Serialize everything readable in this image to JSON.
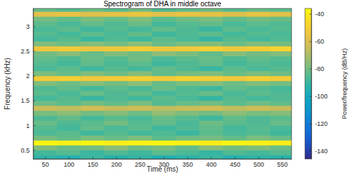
{
  "chart_data": {
    "type": "heatmap",
    "title": "Spectrogram of DHA in middle octave",
    "xlabel": "Time (ms)",
    "ylabel": "Frequency (kHz)",
    "x": [
      50,
      100,
      150,
      200,
      250,
      300,
      350,
      400,
      450,
      500,
      550
    ],
    "y": [
      0.35,
      0.45,
      0.55,
      0.65,
      0.75,
      0.85,
      0.95,
      1.05,
      1.15,
      1.25,
      1.35,
      1.45,
      1.55,
      1.65,
      1.75,
      1.85,
      1.95,
      2.05,
      2.15,
      2.25,
      2.35,
      2.45,
      2.55,
      2.65,
      2.75,
      2.85,
      2.95,
      3.05,
      3.15,
      3.25,
      3.35
    ],
    "z": [
      [
        -92,
        -95,
        -90,
        -94,
        -91,
        -96,
        -93,
        -90,
        -95,
        -92,
        -94
      ],
      [
        -88,
        -85,
        -90,
        -86,
        -89,
        -84,
        -87,
        -91,
        -86,
        -88,
        -85
      ],
      [
        -78,
        -82,
        -80,
        -76,
        -81,
        -79,
        -83,
        -77,
        -80,
        -78,
        -82
      ],
      [
        -38,
        -39,
        -38,
        -40,
        -39,
        -38,
        -39,
        -40,
        -38,
        -39,
        -40
      ],
      [
        -80,
        -83,
        -79,
        -82,
        -78,
        -84,
        -81,
        -80,
        -83,
        -79,
        -82
      ],
      [
        -87,
        -84,
        -89,
        -85,
        -88,
        -86,
        -90,
        -84,
        -87,
        -85,
        -89
      ],
      [
        -85,
        -88,
        -83,
        -87,
        -84,
        -89,
        -86,
        -83,
        -88,
        -85,
        -87
      ],
      [
        -82,
        -86,
        -84,
        -80,
        -85,
        -83,
        -87,
        -81,
        -84,
        -86,
        -82
      ],
      [
        -86,
        -83,
        -88,
        -84,
        -87,
        -82,
        -85,
        -89,
        -83,
        -86,
        -84
      ],
      [
        -79,
        -76,
        -80,
        -77,
        -81,
        -75,
        -78,
        -80,
        -76,
        -79,
        -77
      ],
      [
        -64,
        -66,
        -62,
        -65,
        -63,
        -67,
        -64,
        -62,
        -66,
        -63,
        -65
      ],
      [
        -81,
        -84,
        -80,
        -83,
        -79,
        -85,
        -82,
        -80,
        -84,
        -81,
        -83
      ],
      [
        -88,
        -85,
        -90,
        -86,
        -89,
        -84,
        -87,
        -91,
        -85,
        -88,
        -86
      ],
      [
        -84,
        -87,
        -82,
        -86,
        -83,
        -88,
        -85,
        -82,
        -87,
        -84,
        -86
      ],
      [
        -86,
        -83,
        -88,
        -84,
        -87,
        -82,
        -86,
        -89,
        -83,
        -85,
        -88
      ],
      [
        -78,
        -81,
        -77,
        -80,
        -76,
        -82,
        -79,
        -77,
        -81,
        -78,
        -80
      ],
      [
        -52,
        -50,
        -53,
        -51,
        -50,
        -52,
        -49,
        -51,
        -53,
        -50,
        -51
      ],
      [
        -79,
        -82,
        -78,
        -81,
        -77,
        -83,
        -80,
        -78,
        -82,
        -79,
        -81
      ],
      [
        -87,
        -84,
        -89,
        -85,
        -88,
        -83,
        -86,
        -90,
        -84,
        -87,
        -85
      ],
      [
        -85,
        -88,
        -83,
        -87,
        -84,
        -89,
        -86,
        -83,
        -88,
        -85,
        -87
      ],
      [
        -83,
        -86,
        -82,
        -85,
        -81,
        -87,
        -84,
        -82,
        -86,
        -83,
        -85
      ],
      [
        -80,
        -77,
        -82,
        -78,
        -81,
        -76,
        -79,
        -83,
        -77,
        -80,
        -78
      ],
      [
        -54,
        -52,
        -55,
        -53,
        -51,
        -54,
        -52,
        -50,
        -53,
        -51,
        -48
      ],
      [
        -78,
        -81,
        -77,
        -80,
        -76,
        -82,
        -79,
        -77,
        -81,
        -78,
        -80
      ],
      [
        -88,
        -85,
        -90,
        -86,
        -89,
        -84,
        -87,
        -91,
        -85,
        -88,
        -86
      ],
      [
        -85,
        -88,
        -84,
        -87,
        -83,
        -89,
        -86,
        -84,
        -88,
        -85,
        -87
      ],
      [
        -87,
        -84,
        -89,
        -85,
        -88,
        -83,
        -86,
        -90,
        -84,
        -87,
        -85
      ],
      [
        -84,
        -87,
        -83,
        -86,
        -82,
        -88,
        -85,
        -83,
        -87,
        -84,
        -86
      ],
      [
        -80,
        -83,
        -79,
        -82,
        -78,
        -84,
        -81,
        -79,
        -83,
        -80,
        -82
      ],
      [
        -58,
        -56,
        -59,
        -57,
        -55,
        -58,
        -56,
        -57,
        -59,
        -56,
        -58
      ],
      [
        -82,
        -85,
        -81,
        -84,
        -80,
        -86,
        -83,
        -81,
        -85,
        -82,
        -84
      ]
    ],
    "xlim": [
      25,
      570
    ],
    "ylim": [
      0.32,
      3.36
    ],
    "xticks": [
      50,
      100,
      150,
      200,
      250,
      300,
      350,
      400,
      450,
      500,
      550
    ],
    "yticks": [
      0.5,
      1,
      1.5,
      2,
      2.5,
      3
    ],
    "colorbar": {
      "label": "Power/frequency (dB/Hz)",
      "range": [
        -146,
        -36
      ],
      "ticks": [
        -40,
        -60,
        -80,
        -100,
        -120,
        -140
      ]
    }
  }
}
